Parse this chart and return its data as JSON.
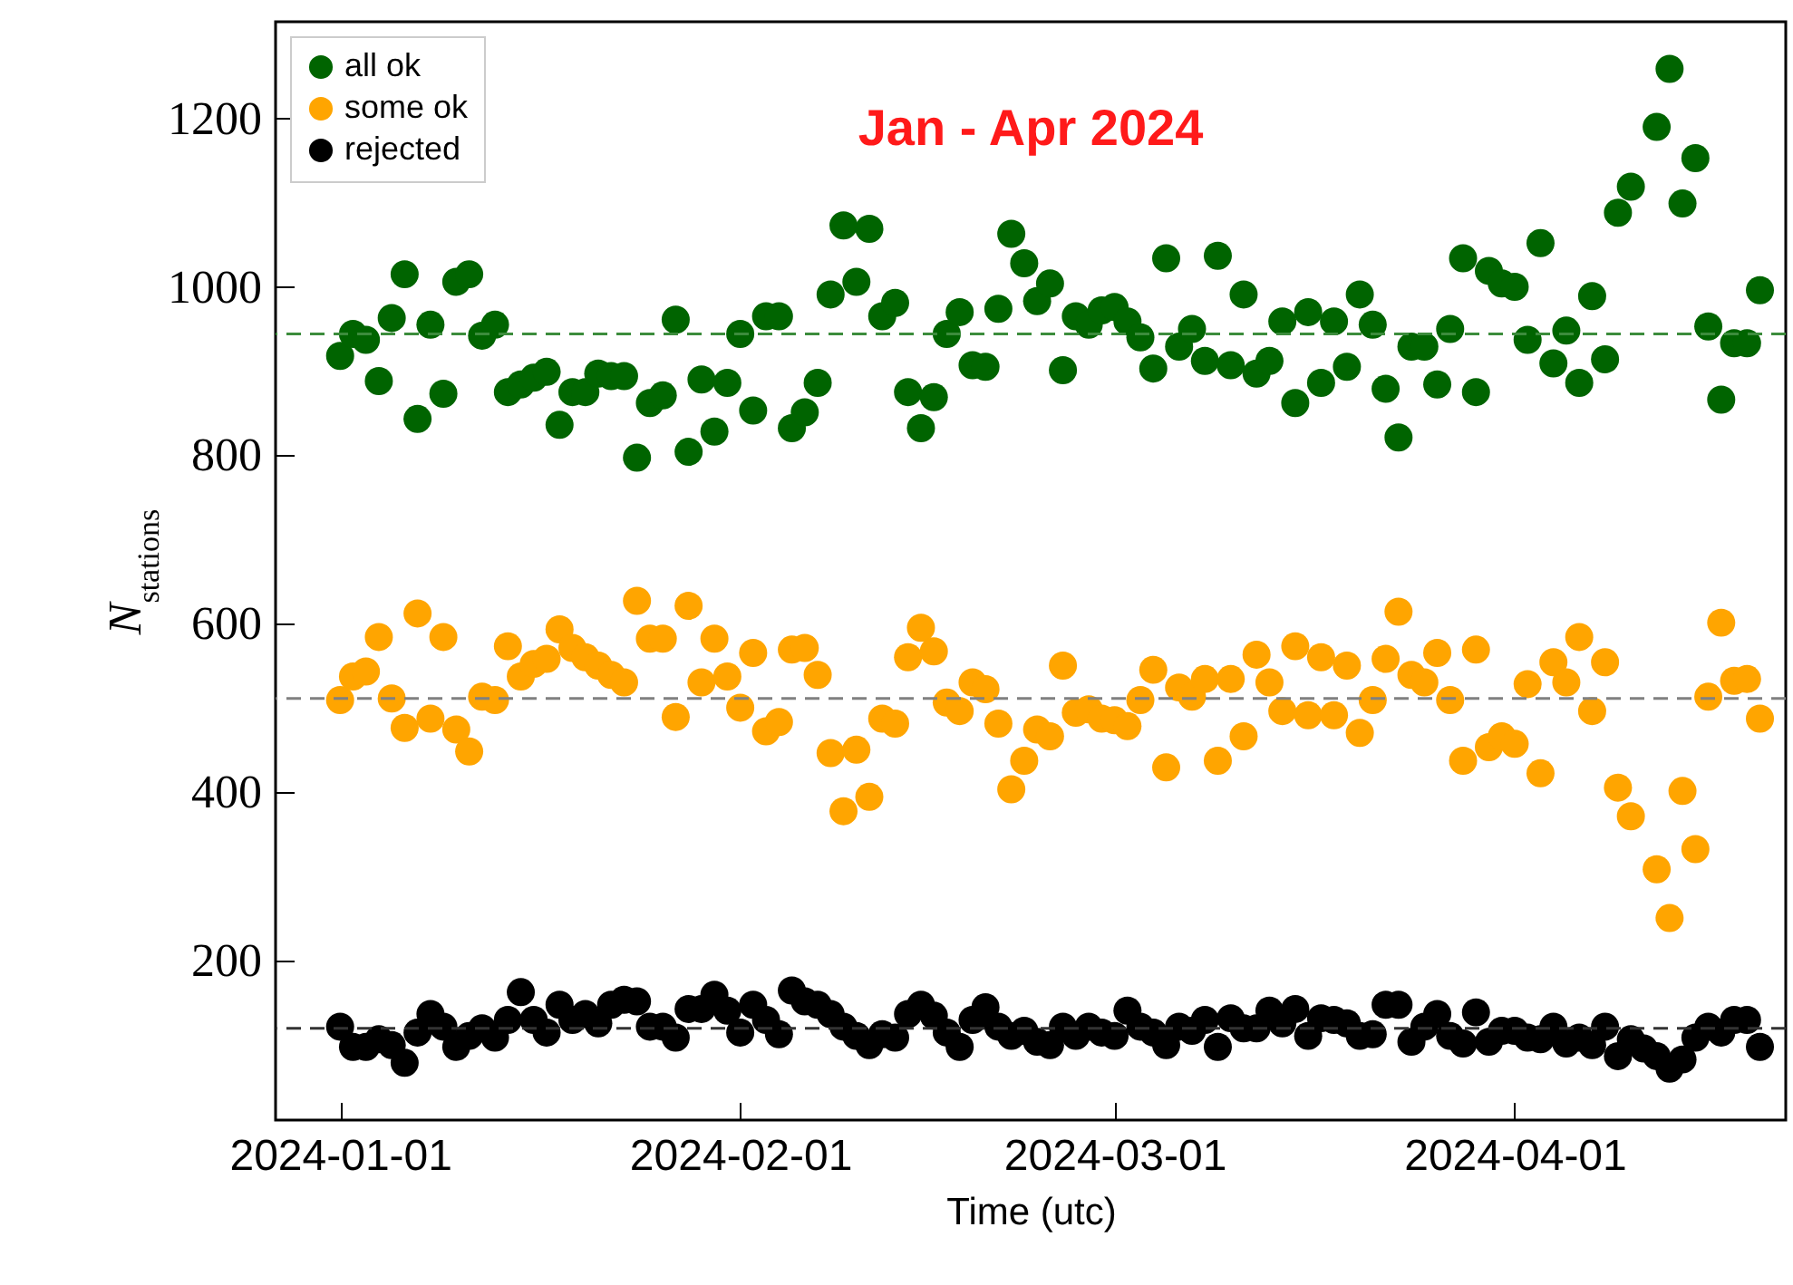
{
  "chart_data": {
    "type": "scatter",
    "title": "Jan - Apr 2024",
    "xlabel": "Time (utc)",
    "ylabel": "N$_{stations}$",
    "x": [
      "2024-01-01",
      "2024-01-02",
      "2024-01-03",
      "2024-01-04",
      "2024-01-05",
      "2024-01-06",
      "2024-01-07",
      "2024-01-08",
      "2024-01-09",
      "2024-01-10",
      "2024-01-11",
      "2024-01-12",
      "2024-01-13",
      "2024-01-14",
      "2024-01-15",
      "2024-01-16",
      "2024-01-17",
      "2024-01-18",
      "2024-01-19",
      "2024-01-20",
      "2024-01-21",
      "2024-01-22",
      "2024-01-23",
      "2024-01-24",
      "2024-01-25",
      "2024-01-26",
      "2024-01-27",
      "2024-01-28",
      "2024-01-29",
      "2024-01-30",
      "2024-01-31",
      "2024-02-01",
      "2024-02-02",
      "2024-02-03",
      "2024-02-04",
      "2024-02-05",
      "2024-02-06",
      "2024-02-07",
      "2024-02-08",
      "2024-02-09",
      "2024-02-10",
      "2024-02-11",
      "2024-02-12",
      "2024-02-13",
      "2024-02-14",
      "2024-02-15",
      "2024-02-16",
      "2024-02-17",
      "2024-02-18",
      "2024-02-19",
      "2024-02-20",
      "2024-02-21",
      "2024-02-22",
      "2024-02-23",
      "2024-02-24",
      "2024-02-25",
      "2024-02-26",
      "2024-02-27",
      "2024-02-28",
      "2024-02-29",
      "2024-03-01",
      "2024-03-02",
      "2024-03-03",
      "2024-03-04",
      "2024-03-05",
      "2024-03-06",
      "2024-03-07",
      "2024-03-08",
      "2024-03-09",
      "2024-03-10",
      "2024-03-11",
      "2024-03-12",
      "2024-03-13",
      "2024-03-14",
      "2024-03-15",
      "2024-03-16",
      "2024-03-17",
      "2024-03-18",
      "2024-03-19",
      "2024-03-20",
      "2024-03-21",
      "2024-03-22",
      "2024-03-23",
      "2024-03-24",
      "2024-03-25",
      "2024-03-26",
      "2024-03-27",
      "2024-03-28",
      "2024-03-29",
      "2024-03-30",
      "2024-03-31",
      "2024-04-01",
      "2024-04-02",
      "2024-04-03",
      "2024-04-04",
      "2024-04-05",
      "2024-04-06",
      "2024-04-07",
      "2024-04-08",
      "2024-04-09",
      "2024-04-10",
      "2024-04-11",
      "2024-04-12",
      "2024-04-13",
      "2024-04-14",
      "2024-04-15",
      "2024-04-16",
      "2024-04-17",
      "2024-04-18",
      "2024-04-19",
      "2024-04-20"
    ],
    "series": [
      {
        "name": "all ok",
        "color": "#006400",
        "values": [
          918,
          944,
          937,
          888,
          963,
          1015,
          843,
          955,
          873,
          1006,
          1015,
          942,
          955,
          875,
          884,
          892,
          899,
          836,
          875,
          875,
          897,
          894,
          894,
          797,
          862,
          871,
          961,
          804,
          890,
          828,
          886,
          944,
          853,
          965,
          965,
          832,
          851,
          886,
          991,
          1073,
          1006,
          1069,
          965,
          981,
          875,
          832,
          869,
          944,
          970,
          907,
          905,
          974,
          1063,
          1028,
          983,
          1004,
          901,
          965,
          955,
          972,
          976,
          959,
          940,
          903,
          1034,
          929,
          950,
          912,
          1037,
          907,
          991,
          897,
          912,
          959,
          862,
          970,
          886,
          959,
          905,
          991,
          955,
          879,
          821,
          929,
          929,
          884,
          950,
          1034,
          875,
          1019,
          1004,
          1000,
          937,
          1052,
          909,
          948,
          886,
          989,
          914,
          1088,
          1119,
          null,
          1190,
          1259,
          1099,
          1153,
          953,
          866,
          933,
          933,
          996
        ]
      },
      {
        "name": "some ok",
        "color": "#ffa500",
        "values": [
          509,
          537,
          543,
          584,
          511,
          476,
          612,
          487,
          584,
          474,
          448,
          513,
          509,
          573,
          537,
          552,
          558,
          593,
          571,
          560,
          550,
          539,
          530,
          627,
          582,
          582,
          489,
          621,
          530,
          582,
          537,
          500,
          565,
          472,
          483,
          569,
          571,
          539,
          446,
          377,
          450,
          394,
          487,
          481,
          560,
          595,
          567,
          506,
          496,
          530,
          522,
          481,
          403,
          437,
          474,
          466,
          550,
          494,
          498,
          487,
          485,
          478,
          509,
          545,
          429,
          524,
          513,
          534,
          437,
          534,
          466,
          563,
          530,
          496,
          573,
          491,
          560,
          491,
          550,
          470,
          509,
          558,
          614,
          539,
          530,
          565,
          509,
          437,
          569,
          453,
          466,
          457,
          528,
          422,
          554,
          530,
          584,
          496,
          554,
          405,
          371,
          null,
          308,
          250,
          401,
          332,
          513,
          601,
          532,
          534,
          487
        ]
      },
      {
        "name": "rejected",
        "color": "#000000",
        "values": [
          121,
          97,
          97,
          106,
          99,
          78,
          114,
          136,
          121,
          97,
          110,
          119,
          108,
          129,
          162,
          129,
          114,
          147,
          129,
          136,
          125,
          147,
          153,
          151,
          121,
          121,
          108,
          142,
          142,
          159,
          140,
          114,
          147,
          129,
          112,
          164,
          151,
          147,
          136,
          121,
          110,
          99,
          112,
          108,
          136,
          147,
          134,
          114,
          97,
          129,
          144,
          121,
          110,
          116,
          103,
          99,
          121,
          110,
          121,
          114,
          110,
          140,
          121,
          114,
          99,
          121,
          116,
          129,
          97,
          131,
          119,
          119,
          140,
          125,
          142,
          110,
          131,
          129,
          125,
          110,
          112,
          147,
          147,
          103,
          121,
          136,
          110,
          101,
          138,
          103,
          116,
          116,
          108,
          106,
          121,
          101,
          108,
          99,
          121,
          86,
          106,
          95,
          86,
          71,
          82,
          108,
          121,
          114,
          129,
          129,
          97
        ]
      }
    ],
    "ref_lines": [
      {
        "axis": "y",
        "value": 944,
        "color": "#3c8c3c",
        "line_style": "dashed"
      },
      {
        "axis": "y",
        "value": 511,
        "color": "#808080",
        "line_style": "dashed"
      },
      {
        "axis": "y",
        "value": 119,
        "color": "#333333",
        "line_style": "dashed"
      }
    ],
    "xlim": [
      "2023-12-27",
      "2024-04-22"
    ],
    "xticks": [
      "2024-01-01",
      "2024-02-01",
      "2024-03-01",
      "2024-04-01"
    ],
    "ylim": [
      10,
      1315
    ],
    "yticks": [
      200,
      400,
      600,
      800,
      1000,
      1200
    ],
    "legend": "top left",
    "marker": "circle"
  }
}
